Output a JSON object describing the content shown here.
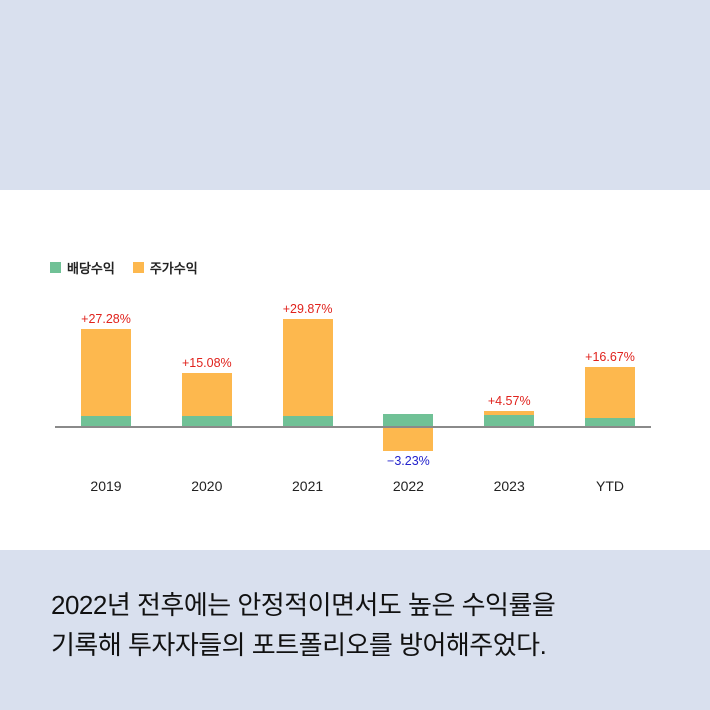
{
  "colors": {
    "background": "#d9e0ee",
    "panel": "#ffffff",
    "dividend": "#70c196",
    "price": "#fdb84e",
    "positive_label": "#e0221c",
    "negative_label": "#2222cc",
    "baseline": "#8a8a8a"
  },
  "legend": {
    "items": [
      {
        "label": "배당수익",
        "color": "#70c196"
      },
      {
        "label": "주가수익",
        "color": "#fdb84e"
      }
    ]
  },
  "chart_data": {
    "type": "bar",
    "stacked": true,
    "title": "",
    "xlabel": "",
    "ylabel": "",
    "categories": [
      "2019",
      "2020",
      "2021",
      "2022",
      "2023",
      "YTD"
    ],
    "series": [
      {
        "name": "배당수익",
        "values": [
          3.0,
          3.0,
          3.0,
          3.5,
          3.4,
          2.5
        ]
      },
      {
        "name": "주가수익",
        "values": [
          24.28,
          12.08,
          26.87,
          -6.73,
          1.17,
          14.17
        ]
      }
    ],
    "totals": [
      27.28,
      15.08,
      29.87,
      -3.23,
      4.57,
      16.67
    ],
    "total_labels": [
      "+27.28%",
      "+15.08%",
      "+29.87%",
      "−3.23%",
      "+4.57%",
      "+16.67%"
    ],
    "legend_position": "top-left",
    "grid": false,
    "ylim": [
      -8,
      32
    ]
  },
  "caption": {
    "line1": "2022년 전후에는 안정적이면서도 높은 수익률을",
    "line2": "기록해 투자자들의 포트폴리오를 방어해주었다."
  }
}
